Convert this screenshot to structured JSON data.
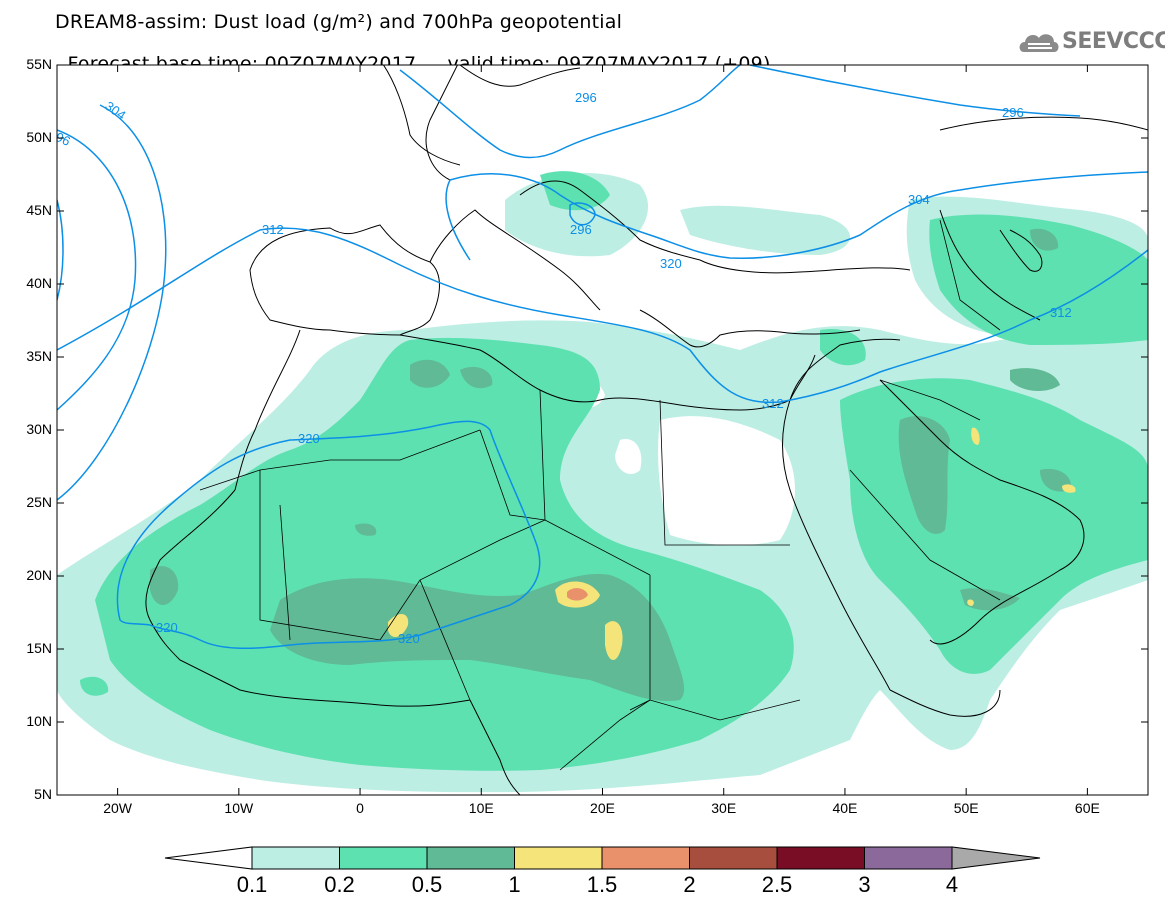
{
  "title_line1": "DREAM8-assim: Dust load (g/m²) and 700hPa geopotential",
  "title_base": "Forecast base time: 00Z07MAY2017",
  "title_valid": "valid time: 09Z07MAY2017 (+09)",
  "logo_text": "SEEVCCC",
  "logo_icon": "cloud-logo-icon",
  "lat_labels": [
    "55N",
    "50N",
    "45N",
    "40N",
    "35N",
    "30N",
    "25N",
    "20N",
    "15N",
    "10N",
    "5N"
  ],
  "lon_labels": [
    "20W",
    "10W",
    "0",
    "10E",
    "20E",
    "30E",
    "40E",
    "50E",
    "60E"
  ],
  "contour_labels": [
    "296",
    "304",
    "312",
    "320",
    "296",
    "312",
    "304",
    "296",
    "312",
    "320",
    "320",
    "320",
    "296"
  ],
  "colorbar": {
    "labels": [
      "0.1",
      "0.2",
      "0.5",
      "1",
      "1.5",
      "2",
      "2.5",
      "3",
      "4"
    ],
    "colors": [
      "#ffffff",
      "#bdeee3",
      "#5ee1b1",
      "#5fba95",
      "#f5e47a",
      "#e8916a",
      "#a84e3e",
      "#7a0d26",
      "#8b6a9b",
      "#a9a9a9"
    ]
  },
  "map_extent": {
    "lon_min": -25,
    "lon_max": 65,
    "lat_min": 5,
    "lat_max": 55
  }
}
